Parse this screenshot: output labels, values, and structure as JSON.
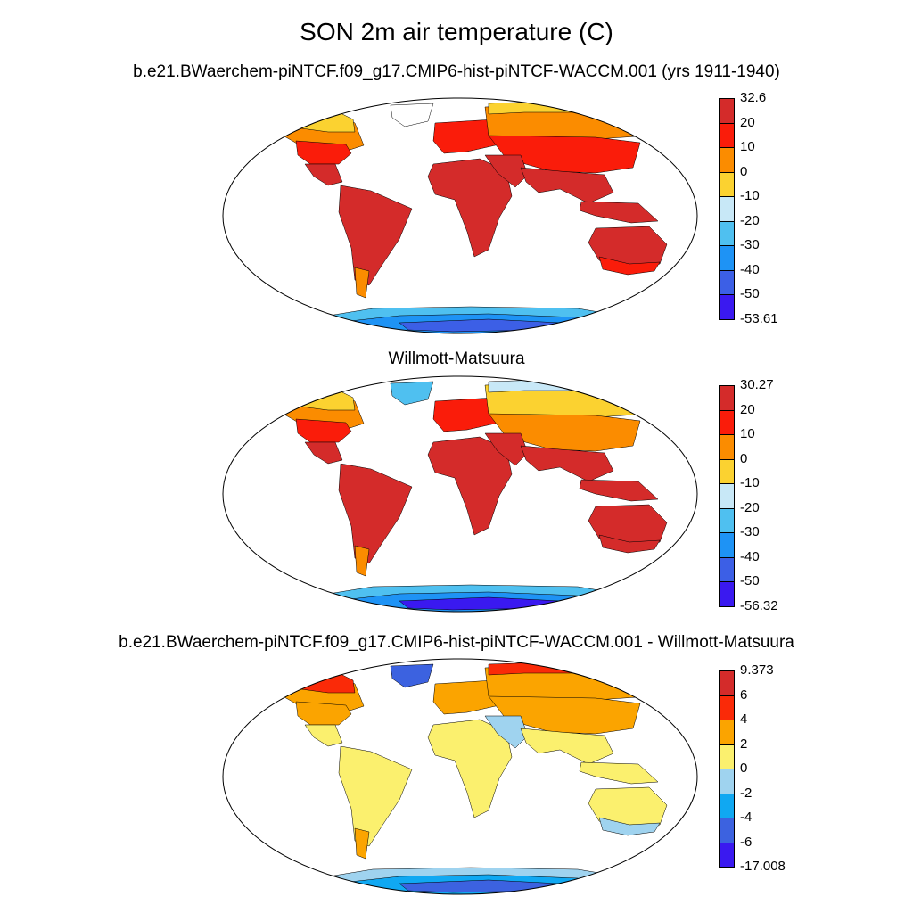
{
  "title": "SON 2m air temperature (C)",
  "palettes": {
    "absolute": [
      "#3a19f0",
      "#3c5fe6",
      "#1e93f5",
      "#4fc0f0",
      "#c8e8f7",
      "#fbd230",
      "#fb8c00",
      "#fa1c0a",
      "#d42b2a"
    ],
    "difference": [
      "#3a19f0",
      "#3c62e0",
      "#10a8f2",
      "#9fd3ef",
      "#fbf06e",
      "#fba400",
      "#fa2a08",
      "#d42b2a"
    ]
  },
  "panels": [
    {
      "name": "model",
      "title": "b.e21.BWaerchem-piNTCF.f09_g17.CMIP6-hist-piNTCF-WACCM.001 (yrs 1911-1940)",
      "colorbar": [
        "32.6",
        "20",
        "10",
        "0",
        "-10",
        "-20",
        "-30",
        "-40",
        "-50",
        "-53.61"
      ],
      "fills": {
        "north_america": "#fb8c00",
        "canada_north": "#fbd230",
        "usa": "#fa1c0a",
        "mexico": "#d42b2a",
        "greenland": "#ffffff",
        "south_america": "#d42b2a",
        "patagonia": "#fb8c00",
        "europe": "#fa1c0a",
        "russia": "#fb8c00",
        "siberia_north": "#fbd230",
        "asia_mid": "#fa1c0a",
        "africa": "#d42b2a",
        "middle_east": "#d42b2a",
        "india_se_asia": "#d42b2a",
        "indonesia": "#d42b2a",
        "australia": "#d42b2a",
        "australia_south": "#fa1c0a",
        "antarctica_coast": "#4fc0f0",
        "antarctica_inner": "#1e93f5",
        "antarctica_core": "#3c5fe6"
      }
    },
    {
      "name": "observations",
      "title": "Willmott-Matsuura",
      "colorbar": [
        "30.27",
        "20",
        "10",
        "0",
        "-10",
        "-20",
        "-30",
        "-40",
        "-50",
        "-56.32"
      ],
      "fills": {
        "north_america": "#fb8c00",
        "canada_north": "#fbd230",
        "usa": "#fa1c0a",
        "mexico": "#d42b2a",
        "greenland": "#4fc0f0",
        "south_america": "#d42b2a",
        "patagonia": "#fb8c00",
        "europe": "#fa1c0a",
        "russia": "#fbd230",
        "siberia_north": "#c8e8f7",
        "asia_mid": "#fb8c00",
        "africa": "#d42b2a",
        "middle_east": "#d42b2a",
        "india_se_asia": "#d42b2a",
        "indonesia": "#d42b2a",
        "australia": "#d42b2a",
        "australia_south": "#d42b2a",
        "antarctica_coast": "#4fc0f0",
        "antarctica_inner": "#1e93f5",
        "antarctica_core": "#3a19f0"
      }
    },
    {
      "name": "difference",
      "title": "b.e21.BWaerchem-piNTCF.f09_g17.CMIP6-hist-piNTCF-WACCM.001 - Willmott-Matsuura",
      "colorbar": [
        "9.373",
        "6",
        "4",
        "2",
        "0",
        "-2",
        "-4",
        "-6",
        "-17.008"
      ],
      "fills": {
        "north_america": "#fba400",
        "canada_north": "#fa2a08",
        "usa": "#fba400",
        "mexico": "#fbf06e",
        "greenland": "#3c62e0",
        "south_america": "#fbf06e",
        "patagonia": "#fba400",
        "europe": "#fba400",
        "russia": "#fba400",
        "siberia_north": "#fa2a08",
        "asia_mid": "#fba400",
        "africa": "#fbf06e",
        "middle_east": "#9fd3ef",
        "india_se_asia": "#fbf06e",
        "indonesia": "#fbf06e",
        "australia": "#fbf06e",
        "australia_south": "#9fd3ef",
        "antarctica_coast": "#9fd3ef",
        "antarctica_inner": "#10a8f2",
        "antarctica_core": "#3c62e0"
      }
    }
  ]
}
